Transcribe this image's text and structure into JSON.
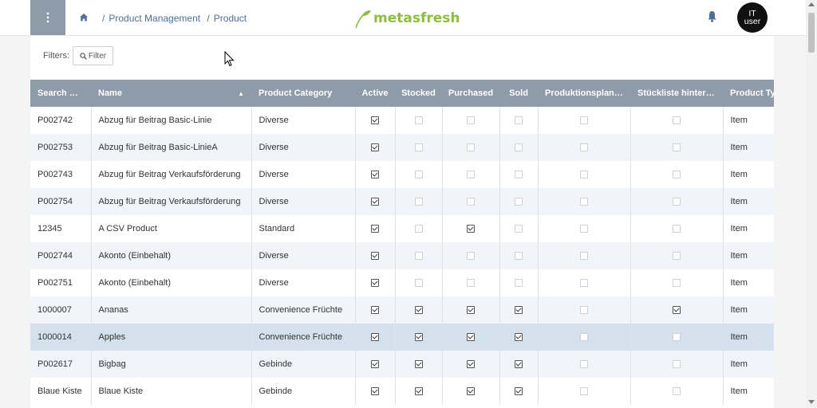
{
  "header": {
    "breadcrumb": [
      "Product Management",
      "Product"
    ],
    "logo_text": "metasfresh",
    "user_initials_line1": "IT",
    "user_initials_line2": "user"
  },
  "filters": {
    "label": "Filters:",
    "button_label": "Filter"
  },
  "table": {
    "columns": [
      "Search Key",
      "Name",
      "Product Category",
      "Active",
      "Stocked",
      "Purchased",
      "Sold",
      "Produktionspland…",
      "Stückliste hinterl…",
      "Product Ty"
    ],
    "sorted_column": "Name",
    "rows": [
      {
        "key": "P002742",
        "name": "Abzug für Beitrag Basic-Linie",
        "category": "Diverse",
        "active": true,
        "stocked": false,
        "purchased": false,
        "sold": false,
        "prod": false,
        "bom": false,
        "type": "Item"
      },
      {
        "key": "P002753",
        "name": "Abzug für Beitrag Basic-LinieA",
        "category": "Diverse",
        "active": true,
        "stocked": false,
        "purchased": false,
        "sold": false,
        "prod": false,
        "bom": false,
        "type": "Item"
      },
      {
        "key": "P002743",
        "name": "Abzug für Beitrag Verkaufsförderung",
        "category": "Diverse",
        "active": true,
        "stocked": false,
        "purchased": false,
        "sold": false,
        "prod": false,
        "bom": false,
        "type": "Item"
      },
      {
        "key": "P002754",
        "name": "Abzug für Beitrag Verkaufsförderung",
        "category": "Diverse",
        "active": true,
        "stocked": false,
        "purchased": false,
        "sold": false,
        "prod": false,
        "bom": false,
        "type": "Item"
      },
      {
        "key": "12345",
        "name": "A CSV Product",
        "category": "Standard",
        "active": true,
        "stocked": false,
        "purchased": true,
        "sold": false,
        "prod": false,
        "bom": false,
        "type": "Item"
      },
      {
        "key": "P002744",
        "name": "Akonto (Einbehalt)",
        "category": "Diverse",
        "active": true,
        "stocked": false,
        "purchased": false,
        "sold": false,
        "prod": false,
        "bom": false,
        "type": "Item"
      },
      {
        "key": "P002751",
        "name": "Akonto (Einbehalt)",
        "category": "Diverse",
        "active": true,
        "stocked": false,
        "purchased": false,
        "sold": false,
        "prod": false,
        "bom": false,
        "type": "Item"
      },
      {
        "key": "1000007",
        "name": "Ananas",
        "category": "Convenience Früchte",
        "active": true,
        "stocked": true,
        "purchased": true,
        "sold": true,
        "prod": false,
        "bom": true,
        "type": "Item"
      },
      {
        "key": "1000014",
        "name": "Apples",
        "category": "Convenience Früchte",
        "active": true,
        "stocked": true,
        "purchased": true,
        "sold": true,
        "prod": false,
        "bom": false,
        "type": "Item",
        "selected": true
      },
      {
        "key": "P002617",
        "name": "Bigbag",
        "category": "Gebinde",
        "active": true,
        "stocked": true,
        "purchased": true,
        "sold": true,
        "prod": false,
        "bom": false,
        "type": "Item"
      },
      {
        "key": "Blaue Kiste",
        "name": "Blaue Kiste",
        "category": "Gebinde",
        "active": true,
        "stocked": true,
        "purchased": true,
        "sold": true,
        "prod": false,
        "bom": false,
        "type": "Item"
      }
    ]
  },
  "colors": {
    "accent": "#8bbf3f",
    "header_bg": "#8e9ba8",
    "link": "#4a6f9c",
    "selected_row": "#d4e1ec"
  }
}
